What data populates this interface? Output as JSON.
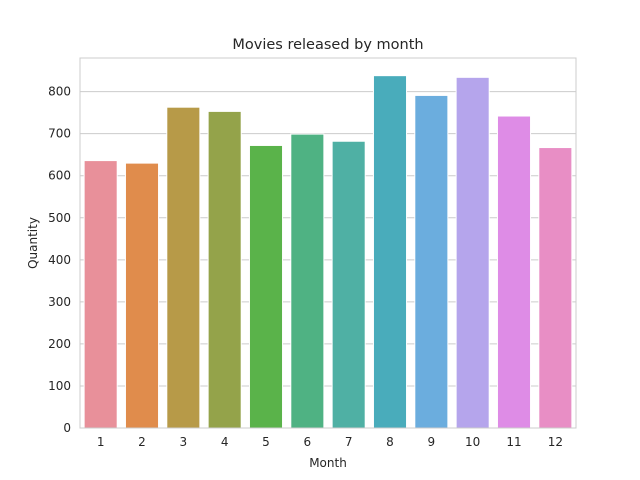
{
  "chart_data": {
    "type": "bar",
    "title": "Movies released by month",
    "xlabel": "Month",
    "ylabel": "Quantity",
    "categories": [
      "1",
      "2",
      "3",
      "4",
      "5",
      "6",
      "7",
      "8",
      "9",
      "10",
      "11",
      "12"
    ],
    "values": [
      636,
      630,
      763,
      753,
      672,
      699,
      682,
      838,
      791,
      834,
      742,
      667
    ],
    "ylim": [
      0,
      880
    ],
    "yticks": [
      0,
      100,
      200,
      300,
      400,
      500,
      600,
      700,
      800
    ],
    "grid": true,
    "legend": "none",
    "colors": [
      "#e8909a",
      "#e08c4c",
      "#b79a48",
      "#94a34a",
      "#5ab34a",
      "#4fb283",
      "#4fb0a4",
      "#49acbb",
      "#6badde",
      "#b5a5ec",
      "#de8ce6",
      "#e88ec5"
    ]
  }
}
